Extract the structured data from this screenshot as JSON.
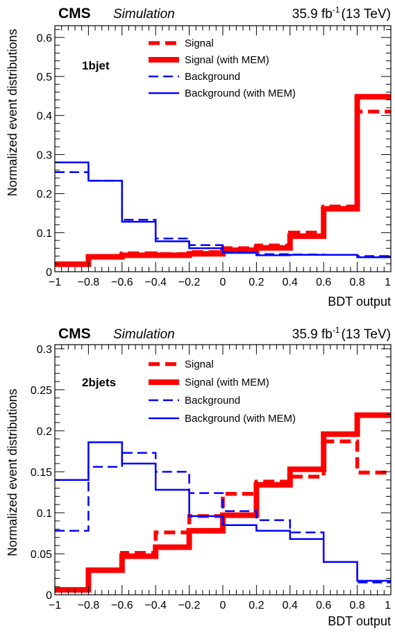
{
  "chart_data": [
    {
      "type": "step",
      "experiment": "CMS",
      "status": "Simulation",
      "lumi_value": "35.9 fb",
      "lumi_exp": "-1",
      "energy": "(13 TeV)",
      "category": "1bjet",
      "xlabel": "BDT output",
      "ylabel": "Normalized event distributions",
      "xlim": [
        -1,
        1
      ],
      "ylim": [
        0,
        0.63
      ],
      "xticks": [
        -1,
        -0.8,
        -0.6,
        -0.4,
        -0.2,
        0,
        0.2,
        0.4,
        0.6,
        0.8,
        1
      ],
      "xtick_labels": [
        "−1",
        "−0.8",
        "−0.6",
        "−0.4",
        "−0.2",
        "0",
        "0.2",
        "0.4",
        "0.6",
        "0.8",
        "1"
      ],
      "yticks": [
        0,
        0.1,
        0.2,
        0.3,
        0.4,
        0.5,
        0.6
      ],
      "ytick_labels": [
        "0",
        "0.1",
        "0.2",
        "0.3",
        "0.4",
        "0.5",
        "0.6"
      ],
      "bin_edges": [
        -1,
        -0.8,
        -0.6,
        -0.4,
        -0.2,
        0,
        0.2,
        0.4,
        0.6,
        0.8,
        1
      ],
      "legend_position": "top-center",
      "series": [
        {
          "name": "Signal",
          "color": "#ff0000",
          "style": "dashed-thick",
          "values": [
            0.021,
            0.04,
            0.047,
            0.045,
            0.05,
            0.06,
            0.067,
            0.1,
            0.167,
            0.41
          ]
        },
        {
          "name": "Signal (with MEM)",
          "color": "#ff0000",
          "style": "solid-thick",
          "values": [
            0.019,
            0.038,
            0.042,
            0.042,
            0.046,
            0.055,
            0.061,
            0.091,
            0.161,
            0.448
          ]
        },
        {
          "name": "Background",
          "color": "#0000ff",
          "style": "dashed",
          "values": [
            0.255,
            0.233,
            0.133,
            0.085,
            0.068,
            0.05,
            0.045,
            0.044,
            0.043,
            0.04
          ]
        },
        {
          "name": "Background (with MEM)",
          "color": "#0000ff",
          "style": "solid",
          "values": [
            0.28,
            0.233,
            0.128,
            0.078,
            0.06,
            0.048,
            0.042,
            0.043,
            0.043,
            0.037
          ]
        }
      ]
    },
    {
      "type": "step",
      "experiment": "CMS",
      "status": "Simulation",
      "lumi_value": "35.9 fb",
      "lumi_exp": "-1",
      "energy": "(13 TeV)",
      "category": "2bjets",
      "xlabel": "BDT output",
      "ylabel": "Normalized event distributions",
      "xlim": [
        -1,
        1
      ],
      "ylim": [
        0,
        0.305
      ],
      "xticks": [
        -1,
        -0.8,
        -0.6,
        -0.4,
        -0.2,
        0,
        0.2,
        0.4,
        0.6,
        0.8,
        1
      ],
      "xtick_labels": [
        "−1",
        "−0.8",
        "−0.6",
        "−0.4",
        "−0.2",
        "0",
        "0.2",
        "0.4",
        "0.6",
        "0.8",
        "1"
      ],
      "yticks": [
        0,
        0.05,
        0.1,
        0.15,
        0.2,
        0.25,
        0.3
      ],
      "ytick_labels": [
        "0",
        "0.05",
        "0.1",
        "0.15",
        "0.2",
        "0.25",
        "0.3"
      ],
      "bin_edges": [
        -1,
        -0.8,
        -0.6,
        -0.4,
        -0.2,
        0,
        0.2,
        0.4,
        0.6,
        0.8,
        1
      ],
      "legend_position": "top-center",
      "series": [
        {
          "name": "Signal",
          "color": "#ff0000",
          "style": "dashed-thick",
          "values": [
            0.006,
            0.03,
            0.051,
            0.076,
            0.096,
            0.123,
            0.138,
            0.144,
            0.187,
            0.149
          ]
        },
        {
          "name": "Signal (with MEM)",
          "color": "#ff0000",
          "style": "solid-thick",
          "values": [
            0.006,
            0.03,
            0.047,
            0.058,
            0.078,
            0.097,
            0.134,
            0.153,
            0.196,
            0.219
          ]
        },
        {
          "name": "Background",
          "color": "#0000ff",
          "style": "dashed",
          "values": [
            0.078,
            0.156,
            0.173,
            0.15,
            0.124,
            0.102,
            0.091,
            0.076,
            0.04,
            0.015
          ]
        },
        {
          "name": "Background (with MEM)",
          "color": "#0000ff",
          "style": "solid",
          "values": [
            0.14,
            0.186,
            0.16,
            0.128,
            0.096,
            0.085,
            0.078,
            0.068,
            0.04,
            0.017
          ]
        }
      ]
    }
  ]
}
